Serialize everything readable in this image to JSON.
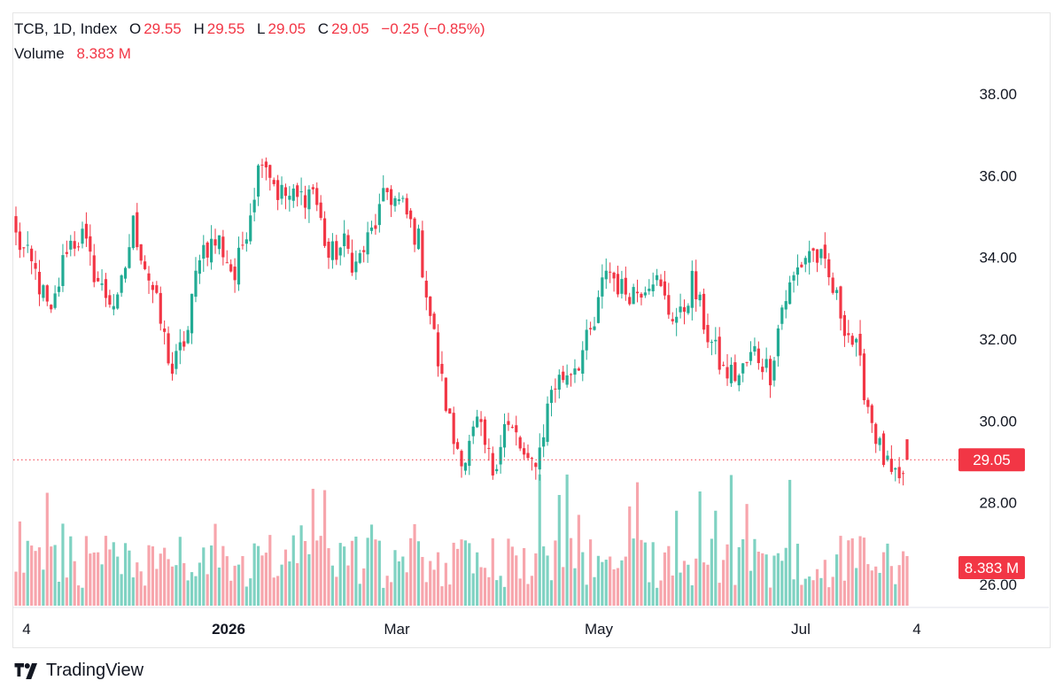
{
  "legend": {
    "symbol": "TCB, 1D, Index",
    "open_label": "O",
    "open": "29.55",
    "high_label": "H",
    "high": "29.55",
    "low_label": "L",
    "low": "29.05",
    "close_label": "C",
    "close": "29.05",
    "change": "−0.25 (−0.85%)",
    "volume_label": "Volume",
    "volume": "8.383 M"
  },
  "price_tag": "29.05",
  "volume_tag": "8.383 M",
  "brand": {
    "name": "TradingView",
    "icon": "tradingview-logo-icon"
  },
  "colors": {
    "up": "#22ab94",
    "down": "#f23645",
    "up_vol": "#7fd2c2",
    "down_vol": "#f7a5ac",
    "last_line": "#f23645"
  },
  "chart_data": {
    "type": "candlestick",
    "symbol": "TCB",
    "interval": "1D",
    "y_ticks": [
      "38.00",
      "36.00",
      "34.00",
      "32.00",
      "30.00",
      "28.00",
      "26.00"
    ],
    "ylim": [
      25.45,
      39.2
    ],
    "x_ticks": [
      "4",
      "2026",
      "Mar",
      "May",
      "Jul",
      "4"
    ],
    "last_price": 29.05,
    "last_volume_millions": 8.383,
    "anchors": [
      [
        0,
        34.5
      ],
      [
        5,
        33.6
      ],
      [
        9,
        32.5
      ],
      [
        13,
        34.3
      ],
      [
        17,
        34.5
      ],
      [
        19,
        33.9
      ],
      [
        22,
        33.2
      ],
      [
        26,
        32.8
      ],
      [
        30,
        34.8
      ],
      [
        35,
        33.2
      ],
      [
        38,
        32.0
      ],
      [
        40,
        31.2
      ],
      [
        44,
        32.2
      ],
      [
        47,
        34.2
      ],
      [
        52,
        34.4
      ],
      [
        56,
        33.5
      ],
      [
        60,
        35.2
      ],
      [
        63,
        36.6
      ],
      [
        67,
        35.6
      ],
      [
        72,
        35.4
      ],
      [
        76,
        35.7
      ],
      [
        80,
        34.0
      ],
      [
        84,
        34.3
      ],
      [
        87,
        33.8
      ],
      [
        91,
        34.6
      ],
      [
        95,
        35.6
      ],
      [
        99,
        35.2
      ],
      [
        103,
        34.4
      ],
      [
        106,
        32.6
      ],
      [
        109,
        30.9
      ],
      [
        112,
        29.5
      ],
      [
        115,
        29.1
      ],
      [
        118,
        29.9
      ],
      [
        122,
        28.8
      ],
      [
        125,
        29.9
      ],
      [
        128,
        29.6
      ],
      [
        131,
        28.8
      ],
      [
        134,
        29.3
      ],
      [
        137,
        30.8
      ],
      [
        140,
        31.1
      ],
      [
        144,
        31.5
      ],
      [
        148,
        32.3
      ],
      [
        151,
        33.8
      ],
      [
        155,
        33.2
      ],
      [
        159,
        33.2
      ],
      [
        163,
        33.6
      ],
      [
        167,
        32.7
      ],
      [
        170,
        32.5
      ],
      [
        173,
        33.4
      ],
      [
        177,
        32.1
      ],
      [
        181,
        31.2
      ],
      [
        185,
        31.1
      ],
      [
        189,
        31.7
      ],
      [
        193,
        31.2
      ],
      [
        196,
        32.8
      ],
      [
        200,
        33.7
      ],
      [
        203,
        34.2
      ],
      [
        206,
        33.9
      ],
      [
        209,
        33.2
      ],
      [
        212,
        32.4
      ],
      [
        215,
        31.7
      ],
      [
        218,
        30.4
      ],
      [
        221,
        29.3
      ],
      [
        224,
        28.6
      ],
      [
        226,
        28.4
      ],
      [
        228,
        29.05
      ]
    ],
    "volume_axis_max_millions": 30
  }
}
